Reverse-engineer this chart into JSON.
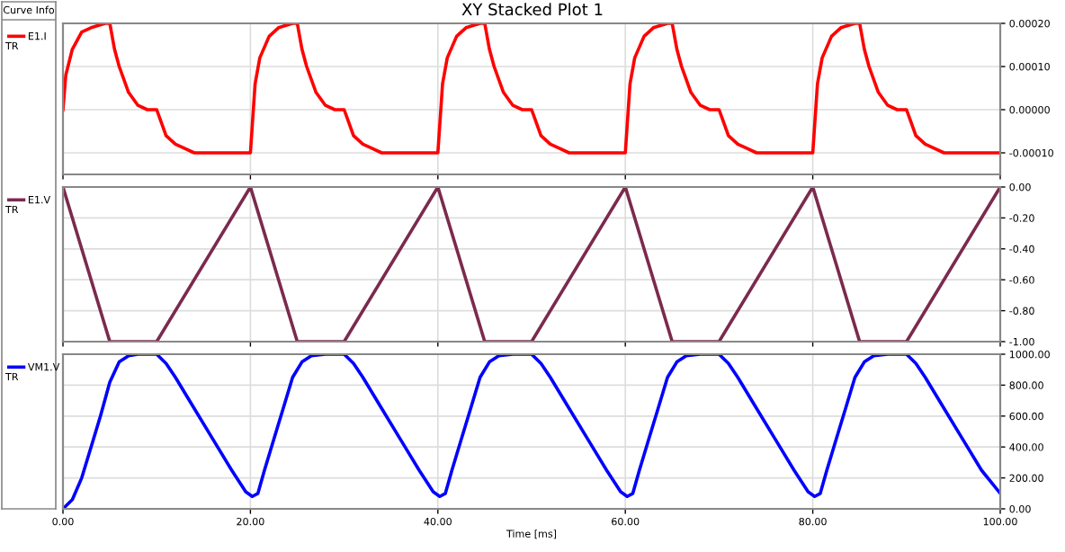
{
  "chart_data": [
    {
      "type": "line",
      "title": "XY Stacked Plot 1",
      "annotations": [
        "Curve Info",
        "TR"
      ],
      "legend": "left",
      "grid": true,
      "tick_labels": "y",
      "line_style": "solid",
      "xlim": [
        0,
        100
      ],
      "xticks": [
        {
          "value": 0,
          "label": null
        },
        {
          "value": 20,
          "label": null
        },
        {
          "value": 40,
          "label": null
        },
        {
          "value": 60,
          "label": null
        },
        {
          "value": 80,
          "label": null
        },
        {
          "value": 100,
          "label": null
        }
      ],
      "ylim": [
        -0.00015,
        0.0002
      ],
      "yticks": [
        {
          "value": -0.0001,
          "label": "-0.00010"
        },
        {
          "value": 0,
          "label": "0.00000"
        },
        {
          "value": 0.0001,
          "label": "0.00010"
        },
        {
          "value": 0.0002,
          "label": "0.00020"
        }
      ],
      "x": [
        0,
        0.3,
        1,
        2,
        3,
        4.5,
        5,
        5.5,
        6,
        7,
        8,
        9,
        10,
        10.5,
        11,
        12,
        13,
        14,
        20,
        20.5,
        21,
        22,
        23,
        24.5,
        25,
        25.5,
        26,
        27,
        28,
        29,
        30,
        30.5,
        31,
        32,
        33,
        34,
        40,
        40.5,
        41,
        42,
        43,
        44.5,
        45,
        45.5,
        46,
        47,
        48,
        49,
        50,
        50.5,
        51,
        52,
        53,
        54,
        60,
        60.5,
        61,
        62,
        63,
        64.5,
        65,
        65.5,
        66,
        67,
        68,
        69,
        70,
        70.5,
        71,
        72,
        73,
        74,
        80,
        80.5,
        81,
        82,
        83,
        84.5,
        85,
        85.5,
        86,
        87,
        88,
        89,
        90,
        90.5,
        91,
        92,
        93,
        94,
        100
      ],
      "series": [
        {
          "name": "E1.I",
          "color": "#ff0000",
          "values": [
            0,
            8e-05,
            0.00014,
            0.00018,
            0.00019,
            0.0002,
            0.0002,
            0.00014,
            0.0001,
            4e-05,
            1e-05,
            0,
            0,
            -3e-05,
            -6e-05,
            -8e-05,
            -9e-05,
            -0.0001,
            -0.0001,
            6e-05,
            0.00012,
            0.00017,
            0.00019,
            0.0002,
            0.0002,
            0.00014,
            0.0001,
            4e-05,
            1e-05,
            0,
            0,
            -3e-05,
            -6e-05,
            -8e-05,
            -9e-05,
            -0.0001,
            -0.0001,
            6e-05,
            0.00012,
            0.00017,
            0.00019,
            0.0002,
            0.0002,
            0.00014,
            0.0001,
            4e-05,
            1e-05,
            0,
            0,
            -3e-05,
            -6e-05,
            -8e-05,
            -9e-05,
            -0.0001,
            -0.0001,
            6e-05,
            0.00012,
            0.00017,
            0.00019,
            0.0002,
            0.0002,
            0.00014,
            0.0001,
            4e-05,
            1e-05,
            0,
            0,
            -3e-05,
            -6e-05,
            -8e-05,
            -9e-05,
            -0.0001,
            -0.0001,
            6e-05,
            0.00012,
            0.00017,
            0.00019,
            0.0002,
            0.0002,
            0.00014,
            0.0001,
            4e-05,
            1e-05,
            0,
            0,
            -3e-05,
            -6e-05,
            -8e-05,
            -9e-05,
            -0.0001,
            -0.0001
          ]
        }
      ]
    },
    {
      "type": "line",
      "annotations": [
        "TR"
      ],
      "legend": "left",
      "grid": true,
      "tick_labels": "y",
      "line_style": "solid",
      "xlim": [
        0,
        100
      ],
      "xticks": [
        {
          "value": 0,
          "label": null
        },
        {
          "value": 20,
          "label": null
        },
        {
          "value": 40,
          "label": null
        },
        {
          "value": 60,
          "label": null
        },
        {
          "value": 80,
          "label": null
        },
        {
          "value": 100,
          "label": null
        }
      ],
      "ylim": [
        -1,
        0
      ],
      "yticks": [
        {
          "value": -1,
          "label": "-1.00"
        },
        {
          "value": -0.8,
          "label": "-0.80"
        },
        {
          "value": -0.6,
          "label": "-0.60"
        },
        {
          "value": -0.4,
          "label": "-0.40"
        },
        {
          "value": -0.2,
          "label": "-0.20"
        },
        {
          "value": 0,
          "label": "0.00"
        }
      ],
      "x": [
        0,
        5,
        10,
        20,
        25,
        30,
        40,
        45,
        50,
        60,
        65,
        70,
        80,
        85,
        90,
        100
      ],
      "series": [
        {
          "name": "E1.V",
          "color": "#7b2a4e",
          "values": [
            0,
            -1,
            -1,
            0,
            -1,
            -1,
            0,
            -1,
            -1,
            0,
            -1,
            -1,
            0,
            -1,
            -1,
            0
          ]
        }
      ]
    },
    {
      "type": "line",
      "annotations": [
        "TR"
      ],
      "xlabel": "Time [ms]",
      "legend": "left",
      "grid": true,
      "line_style": "solid",
      "xlim": [
        0,
        100
      ],
      "xticks": [
        {
          "value": 0,
          "label": "0.00"
        },
        {
          "value": 20,
          "label": "20.00"
        },
        {
          "value": 40,
          "label": "40.00"
        },
        {
          "value": 60,
          "label": "60.00"
        },
        {
          "value": 80,
          "label": "80.00"
        },
        {
          "value": 100,
          "label": "100.00"
        }
      ],
      "ylim": [
        0,
        1000
      ],
      "yticks": [
        {
          "value": 0,
          "label": "0.00"
        },
        {
          "value": 200,
          "label": "200.00"
        },
        {
          "value": 400,
          "label": "400.00"
        },
        {
          "value": 600,
          "label": "600.00"
        },
        {
          "value": 800,
          "label": "800.00"
        },
        {
          "value": 1000,
          "label": "1000.00"
        }
      ],
      "x": [
        0,
        1,
        2,
        3,
        4,
        5,
        6,
        7,
        8,
        10,
        11,
        12,
        14,
        16,
        18,
        19.5,
        20.2,
        20.8,
        21.5,
        22.5,
        23.5,
        24.5,
        25.5,
        26.5,
        28,
        30,
        31,
        32,
        34,
        36,
        38,
        39.5,
        40.2,
        40.8,
        41.5,
        42.5,
        43.5,
        44.5,
        45.5,
        46.5,
        48,
        50,
        51,
        52,
        54,
        56,
        58,
        59.5,
        60.2,
        60.8,
        61.5,
        62.5,
        63.5,
        64.5,
        65.5,
        66.5,
        68,
        70,
        71,
        72,
        74,
        76,
        78,
        79.5,
        80.2,
        80.8,
        81.5,
        82.5,
        83.5,
        84.5,
        85.5,
        86.5,
        88,
        90,
        91,
        92,
        94,
        96,
        98,
        100
      ],
      "series": [
        {
          "name": "VM1.V",
          "color": "#0000ff",
          "values": [
            0,
            60,
            200,
            400,
            600,
            820,
            950,
            990,
            1000,
            1000,
            940,
            850,
            650,
            450,
            250,
            110,
            80,
            100,
            250,
            450,
            650,
            850,
            950,
            990,
            1000,
            1000,
            940,
            850,
            650,
            450,
            250,
            110,
            80,
            100,
            250,
            450,
            650,
            850,
            950,
            990,
            1000,
            1000,
            940,
            850,
            650,
            450,
            250,
            110,
            80,
            100,
            250,
            450,
            650,
            850,
            950,
            990,
            1000,
            1000,
            940,
            850,
            650,
            450,
            250,
            110,
            80,
            100,
            250,
            450,
            650,
            850,
            950,
            990,
            1000,
            1000,
            940,
            850,
            650,
            450,
            250,
            100
          ]
        }
      ]
    }
  ]
}
